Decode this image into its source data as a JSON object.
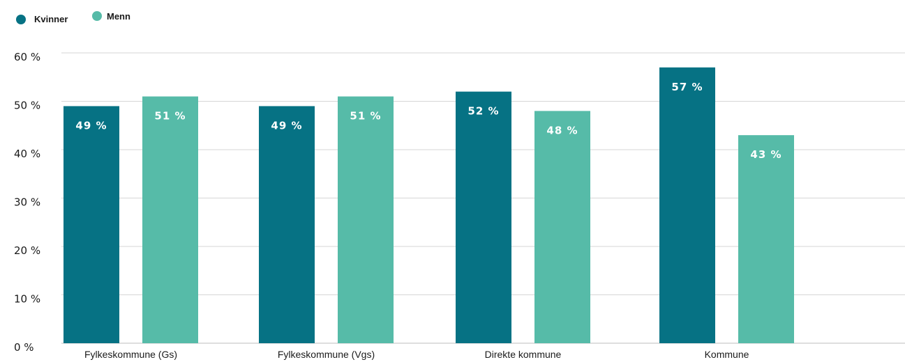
{
  "chart_data": {
    "type": "bar",
    "categories": [
      "Fylkeskommune (Gs)",
      "Fylkeskommune (Vgs)",
      "Direkte kommune",
      "Kommune"
    ],
    "series": [
      {
        "name": "Kvinner",
        "color": "#067284",
        "values": [
          49,
          49,
          52,
          57
        ],
        "labels": [
          "49 %",
          "49 %",
          "52 %",
          "57 %"
        ]
      },
      {
        "name": "Menn",
        "color": "#56bba8",
        "values": [
          51,
          51,
          48,
          43
        ],
        "labels": [
          "51 %",
          "51 %",
          "48 %",
          "43 %"
        ]
      }
    ],
    "y_ticks": [
      "0 %",
      "10 %",
      "20 %",
      "30 %",
      "40 %",
      "50 %",
      "60 %"
    ],
    "ylim": [
      0,
      60
    ],
    "grid": true,
    "legend_position": "top-left"
  }
}
